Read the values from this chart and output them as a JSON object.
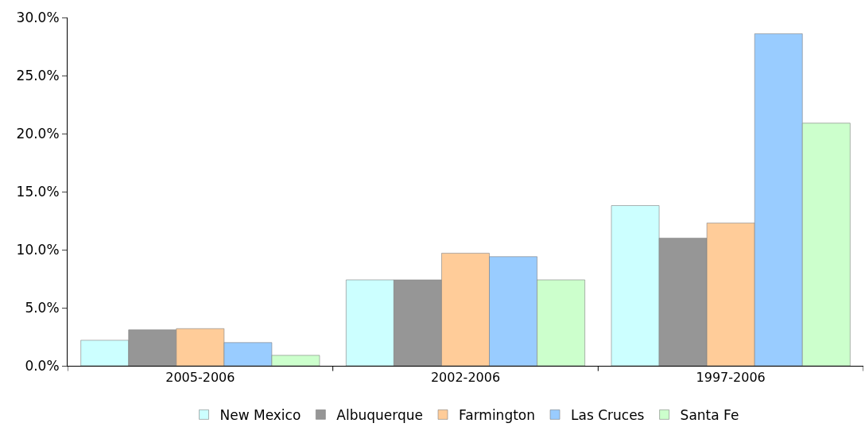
{
  "chart_data": {
    "type": "bar",
    "categories": [
      "2005-2006",
      "2002-2006",
      "1997-2006"
    ],
    "series": [
      {
        "name": "New Mexico",
        "color": "#ccffff",
        "values": [
          2.2,
          7.4,
          13.8
        ]
      },
      {
        "name": "Albuquerque",
        "color": "#969696",
        "values": [
          3.1,
          7.4,
          11.0
        ]
      },
      {
        "name": "Farmington",
        "color": "#ffcc99",
        "values": [
          3.2,
          9.7,
          12.3
        ]
      },
      {
        "name": "Las Cruces",
        "color": "#99ccff",
        "values": [
          2.0,
          9.4,
          28.6
        ]
      },
      {
        "name": "Santa Fe",
        "color": "#ccffcc",
        "values": [
          0.9,
          7.4,
          20.9
        ]
      }
    ],
    "ylim": [
      0,
      30
    ],
    "yticks": [
      {
        "value": 0,
        "label": "0.0%"
      },
      {
        "value": 5,
        "label": "5.0%"
      },
      {
        "value": 10,
        "label": "10.0%"
      },
      {
        "value": 15,
        "label": "15.0%"
      },
      {
        "value": 20,
        "label": "20.0%"
      },
      {
        "value": 25,
        "label": "25.0%"
      },
      {
        "value": 30,
        "label": "30.0%"
      }
    ],
    "legend": "bottom"
  }
}
